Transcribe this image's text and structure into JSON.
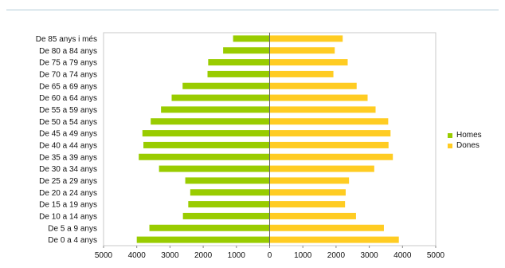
{
  "chart_data": {
    "type": "bar",
    "orientation": "horizontal",
    "categories": [
      "De 85 anys i més",
      "De 80 a 84 anys",
      "De 75 a 79 anys",
      "De 70 a 74 anys",
      "De 65 a 69 anys",
      "De 60 a 64 anys",
      "De 55 a 59 anys",
      "De 50 a 54 anys",
      "De 45 a 49 anys",
      "De 40 a 44 anys",
      "De 35 a 39 anys",
      "De 30 a 34 anys",
      "De 25 a 29 anys",
      "De 20 a 24 anys",
      "De 15 a 19 anys",
      "De 10 a 14 anys",
      "De 5 a 9 anys",
      "De 0 a 4 anys"
    ],
    "series": [
      {
        "name": "Homes",
        "color": "#99cc00",
        "values": [
          1100,
          1400,
          1850,
          1870,
          2620,
          2950,
          3270,
          3580,
          3830,
          3800,
          3940,
          3330,
          2540,
          2390,
          2450,
          2610,
          3620,
          4000
        ]
      },
      {
        "name": "Dones",
        "color": "#ffcc22",
        "values": [
          2200,
          1960,
          2350,
          1920,
          2620,
          2950,
          3190,
          3570,
          3640,
          3580,
          3710,
          3150,
          2390,
          2290,
          2270,
          2600,
          3440,
          3890
        ]
      }
    ],
    "xlim": [
      -5000,
      5000
    ],
    "x_ticks": [
      "5000",
      "4000",
      "3000",
      "2000",
      "1000",
      "0",
      "1000",
      "2000",
      "3000",
      "4000",
      "5000"
    ],
    "legend_position": "right"
  }
}
